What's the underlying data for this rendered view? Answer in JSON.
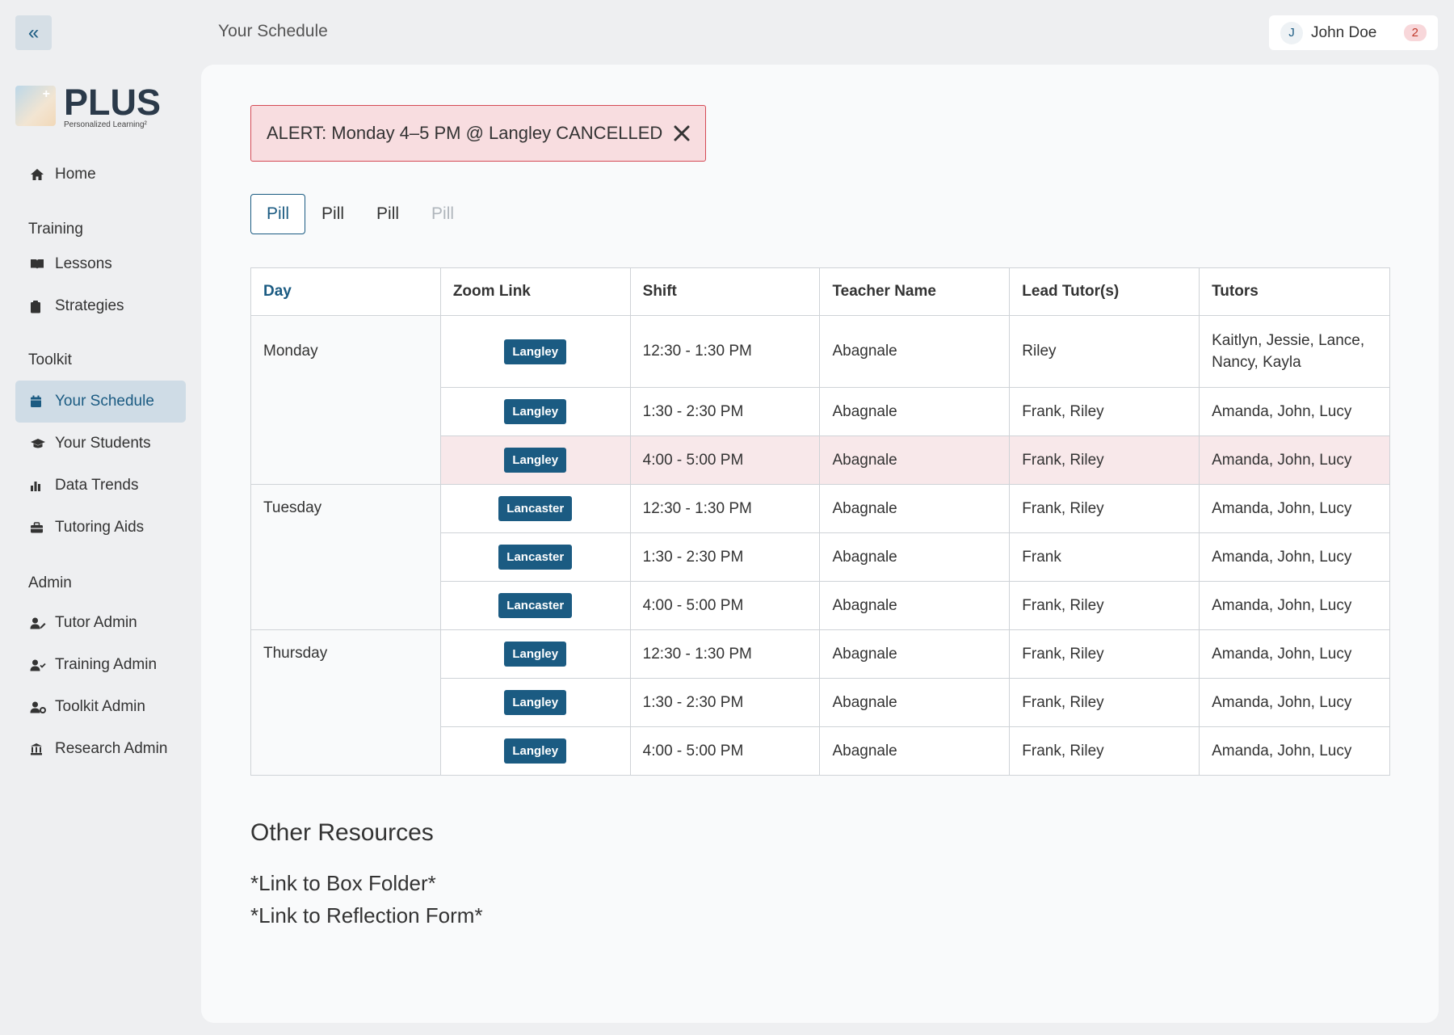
{
  "header": {
    "page_title": "Your Schedule",
    "user": {
      "initial": "J",
      "name": "John Doe",
      "notifications": "2"
    }
  },
  "sidebar": {
    "collapse_icon": "«",
    "logo": {
      "title": "PLUS",
      "subtitle": "Personalized Learning²"
    },
    "home": "Home",
    "sections": {
      "training": "Training",
      "toolkit": "Toolkit",
      "admin": "Admin"
    },
    "items": {
      "lessons": "Lessons",
      "strategies": "Strategies",
      "your_schedule": "Your Schedule",
      "your_students": "Your Students",
      "data_trends": "Data Trends",
      "tutoring_aids": "Tutoring Aids",
      "tutor_admin": "Tutor Admin",
      "training_admin": "Training Admin",
      "toolkit_admin": "Toolkit Admin",
      "research_admin": "Research Admin"
    }
  },
  "alert": {
    "text": "ALERT: Monday 4–5 PM @ Langley CANCELLED"
  },
  "pills": [
    "Pill",
    "Pill",
    "Pill",
    "Pill"
  ],
  "table": {
    "headers": [
      "Day",
      "Zoom Link",
      "Shift",
      "Teacher Name",
      "Lead Tutor(s)",
      "Tutors"
    ],
    "days": [
      "Monday",
      "Tuesday",
      "Thursday"
    ],
    "rows": [
      {
        "zoom": "Langley",
        "shift": "12:30 - 1:30 PM",
        "teacher": "Abagnale",
        "lead": "Riley",
        "tutors": "Kaitlyn, Jessie, Lance, Nancy, Kayla"
      },
      {
        "zoom": "Langley",
        "shift": "1:30 - 2:30 PM",
        "teacher": "Abagnale",
        "lead": "Frank, Riley",
        "tutors": "Amanda, John, Lucy"
      },
      {
        "zoom": "Langley",
        "shift": "4:00 - 5:00 PM",
        "teacher": "Abagnale",
        "lead": "Frank, Riley",
        "tutors": "Amanda, John, Lucy"
      },
      {
        "zoom": "Lancaster",
        "shift": "12:30 - 1:30 PM",
        "teacher": "Abagnale",
        "lead": "Frank, Riley",
        "tutors": "Amanda, John, Lucy"
      },
      {
        "zoom": "Lancaster",
        "shift": "1:30 - 2:30 PM",
        "teacher": "Abagnale",
        "lead": "Frank",
        "tutors": "Amanda, John, Lucy"
      },
      {
        "zoom": "Lancaster",
        "shift": "4:00 - 5:00 PM",
        "teacher": "Abagnale",
        "lead": "Frank, Riley",
        "tutors": "Amanda, John, Lucy"
      },
      {
        "zoom": "Langley",
        "shift": "12:30 - 1:30 PM",
        "teacher": "Abagnale",
        "lead": "Frank, Riley",
        "tutors": "Amanda, John, Lucy"
      },
      {
        "zoom": "Langley",
        "shift": "1:30 - 2:30 PM",
        "teacher": "Abagnale",
        "lead": "Frank, Riley",
        "tutors": "Amanda, John, Lucy"
      },
      {
        "zoom": "Langley",
        "shift": "4:00 - 5:00 PM",
        "teacher": "Abagnale",
        "lead": "Frank, Riley",
        "tutors": "Amanda, John, Lucy"
      }
    ]
  },
  "resources": {
    "title": "Other Resources",
    "links": [
      "*Link to Box Folder*",
      "*Link to Reflection Form*"
    ]
  },
  "colors": {
    "primary": "#1b5b82",
    "alert_border": "#d44a55",
    "alert_bg": "#f8dde0",
    "cancelled_row": "#f8e8ea"
  }
}
